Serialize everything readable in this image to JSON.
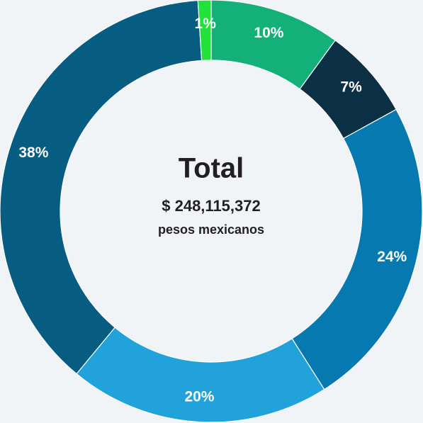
{
  "chart_data": {
    "type": "donut",
    "center_title": "Total",
    "center_value": "$ 248,115,372",
    "center_caption": "pesos mexicanos",
    "values": [
      10,
      7,
      24,
      20,
      38,
      1
    ],
    "value_labels": [
      "10%",
      "7%",
      "24%",
      "20%",
      "38%",
      "1%"
    ],
    "colors": [
      "#14b07a",
      "#0b2f45",
      "#0679b0",
      "#22a2da",
      "#075c82",
      "#21e23b"
    ]
  }
}
